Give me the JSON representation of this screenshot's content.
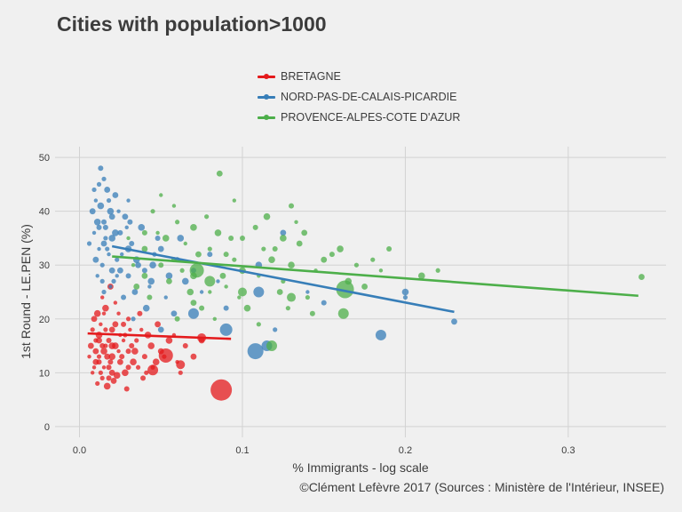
{
  "title": "Cities with population>1000",
  "caption": "©Clément Lefèvre 2017 (Sources : Ministère de l'Intérieur, INSEE)",
  "legend": [
    {
      "label": "BRETAGNE",
      "color": "#e41a1c"
    },
    {
      "label": "NORD-PAS-DE-CALAIS-PICARDIE",
      "color": "#377eb8"
    },
    {
      "label": "PROVENCE-ALPES-COTE D'AZUR",
      "color": "#4daf4a"
    }
  ],
  "chart_data": {
    "type": "scatter",
    "title": "Cities with population>1000",
    "xlabel": "% Immigrants - log scale",
    "ylabel": "1st Round - LE.PEN (%)",
    "xlim": [
      -0.015,
      0.36
    ],
    "ylim": [
      -2,
      52
    ],
    "x_ticks": [
      0.0,
      0.1,
      0.2,
      0.3
    ],
    "x_tick_labels": [
      "0.0",
      "0.1",
      "0.2",
      "0.3"
    ],
    "y_ticks": [
      0,
      10,
      20,
      30,
      40,
      50
    ],
    "y_tick_labels": [
      "0",
      "10",
      "20",
      "30",
      "40",
      "50"
    ],
    "grid": true,
    "legend_position": "top",
    "series": [
      {
        "name": "BRETAGNE",
        "color": "#e41a1c",
        "trend": [
          [
            0.005,
            17.3
          ],
          [
            0.093,
            16.3
          ]
        ],
        "points": [
          [
            0.008,
            10
          ],
          [
            0.012,
            12
          ],
          [
            0.015,
            14
          ],
          [
            0.01,
            16
          ],
          [
            0.02,
            18
          ],
          [
            0.006,
            13
          ],
          [
            0.018,
            11
          ],
          [
            0.022,
            15
          ],
          [
            0.014,
            9
          ],
          [
            0.009,
            20
          ],
          [
            0.025,
            17
          ],
          [
            0.03,
            14
          ],
          [
            0.016,
            22
          ],
          [
            0.011,
            8
          ],
          [
            0.007,
            15
          ],
          [
            0.013,
            19
          ],
          [
            0.019,
            12
          ],
          [
            0.028,
            10
          ],
          [
            0.035,
            16
          ],
          [
            0.017,
            13
          ],
          [
            0.024,
            21
          ],
          [
            0.04,
            13
          ],
          [
            0.012,
            17
          ],
          [
            0.008,
            18
          ],
          [
            0.021,
            8.5
          ],
          [
            0.015,
            11
          ],
          [
            0.027,
            19
          ],
          [
            0.033,
            12
          ],
          [
            0.045,
            11
          ],
          [
            0.01,
            14
          ],
          [
            0.014,
            24
          ],
          [
            0.018,
            16
          ],
          [
            0.023,
            9.5
          ],
          [
            0.03,
            20
          ],
          [
            0.05,
            14
          ],
          [
            0.038,
            18
          ],
          [
            0.026,
            13
          ],
          [
            0.011,
            21
          ],
          [
            0.016,
            15
          ],
          [
            0.02,
            10
          ],
          [
            0.06,
            12
          ],
          [
            0.032,
            15
          ],
          [
            0.042,
            17
          ],
          [
            0.013,
            10
          ],
          [
            0.019,
            26
          ],
          [
            0.009,
            11
          ],
          [
            0.029,
            7
          ],
          [
            0.055,
            16
          ],
          [
            0.036,
            11
          ],
          [
            0.048,
            19
          ],
          [
            0.022,
            23
          ],
          [
            0.065,
            15
          ],
          [
            0.017,
            7.5
          ],
          [
            0.012,
            13
          ],
          [
            0.025,
            12
          ],
          [
            0.031,
            18
          ],
          [
            0.014,
            15
          ],
          [
            0.02,
            13
          ],
          [
            0.016,
            18
          ],
          [
            0.01,
            12
          ],
          [
            0.027,
            16
          ],
          [
            0.018,
            9
          ],
          [
            0.034,
            14
          ],
          [
            0.041,
            10
          ],
          [
            0.022,
            19
          ],
          [
            0.015,
            21
          ],
          [
            0.03,
            11
          ],
          [
            0.044,
            15
          ],
          [
            0.052,
            13
          ],
          [
            0.012,
            16
          ],
          [
            0.024,
            14
          ],
          [
            0.037,
            21
          ],
          [
            0.02,
            15
          ],
          [
            0.028,
            17
          ],
          [
            0.07,
            13
          ],
          [
            0.058,
            17
          ],
          [
            0.039,
            9
          ],
          [
            0.047,
            12
          ],
          [
            0.062,
            10
          ],
          [
            0.075,
            16
          ]
        ],
        "big_points": [
          [
            0.053,
            13.2,
            8
          ],
          [
            0.087,
            6.8,
            12
          ],
          [
            0.062,
            11.5,
            5
          ],
          [
            0.075,
            16.5,
            5
          ],
          [
            0.045,
            10.5,
            6
          ]
        ]
      },
      {
        "name": "NORD-PAS-DE-CALAIS-PICARDIE",
        "color": "#377eb8",
        "trend": [
          [
            0.02,
            33.5
          ],
          [
            0.23,
            21.3
          ]
        ],
        "points": [
          [
            0.01,
            42
          ],
          [
            0.015,
            38
          ],
          [
            0.02,
            35
          ],
          [
            0.012,
            45
          ],
          [
            0.008,
            40
          ],
          [
            0.018,
            32
          ],
          [
            0.025,
            36
          ],
          [
            0.03,
            33
          ],
          [
            0.014,
            30
          ],
          [
            0.022,
            43
          ],
          [
            0.011,
            28
          ],
          [
            0.016,
            37
          ],
          [
            0.035,
            31
          ],
          [
            0.006,
            34
          ],
          [
            0.028,
            39
          ],
          [
            0.019,
            26
          ],
          [
            0.04,
            29
          ],
          [
            0.013,
            41
          ],
          [
            0.023,
            31
          ],
          [
            0.017,
            44
          ],
          [
            0.009,
            36
          ],
          [
            0.032,
            34
          ],
          [
            0.045,
            30
          ],
          [
            0.021,
            27
          ],
          [
            0.05,
            33
          ],
          [
            0.012,
            33
          ],
          [
            0.027,
            24
          ],
          [
            0.038,
            37
          ],
          [
            0.015,
            46
          ],
          [
            0.01,
            31
          ],
          [
            0.024,
            40
          ],
          [
            0.03,
            28
          ],
          [
            0.055,
            28
          ],
          [
            0.016,
            35
          ],
          [
            0.02,
            39
          ],
          [
            0.043,
            26
          ],
          [
            0.06,
            31
          ],
          [
            0.011,
            38
          ],
          [
            0.018,
            42
          ],
          [
            0.034,
            25
          ],
          [
            0.026,
            32
          ],
          [
            0.048,
            35
          ],
          [
            0.065,
            27
          ],
          [
            0.014,
            27
          ],
          [
            0.02,
            29
          ],
          [
            0.03,
            42
          ],
          [
            0.012,
            37
          ],
          [
            0.022,
            36
          ],
          [
            0.017,
            33
          ],
          [
            0.036,
            30
          ],
          [
            0.053,
            24
          ],
          [
            0.07,
            29
          ],
          [
            0.041,
            22
          ],
          [
            0.009,
            44
          ],
          [
            0.025,
            29
          ],
          [
            0.029,
            37
          ],
          [
            0.013,
            48
          ],
          [
            0.019,
            40
          ],
          [
            0.046,
            32
          ],
          [
            0.058,
            21
          ],
          [
            0.075,
            25
          ],
          [
            0.08,
            32
          ],
          [
            0.062,
            35
          ],
          [
            0.033,
            20
          ],
          [
            0.015,
            34
          ],
          [
            0.023,
            28
          ],
          [
            0.031,
            38
          ],
          [
            0.044,
            27
          ],
          [
            0.015,
            25
          ],
          [
            0.05,
            18
          ],
          [
            0.085,
            27
          ],
          [
            0.09,
            22
          ],
          [
            0.11,
            30
          ],
          [
            0.12,
            18
          ],
          [
            0.125,
            36
          ],
          [
            0.14,
            25
          ],
          [
            0.15,
            23
          ],
          [
            0.2,
            25
          ],
          [
            0.2,
            24
          ],
          [
            0.23,
            19.5
          ]
        ],
        "big_points": [
          [
            0.108,
            14,
            9
          ],
          [
            0.115,
            15,
            6
          ],
          [
            0.185,
            17,
            6
          ],
          [
            0.09,
            18,
            7
          ],
          [
            0.07,
            21,
            6
          ],
          [
            0.11,
            25,
            6
          ]
        ]
      },
      {
        "name": "PROVENCE-ALPES-COTE D'AZUR",
        "color": "#4daf4a",
        "trend": [
          [
            0.02,
            31.6
          ],
          [
            0.343,
            24.3
          ]
        ],
        "points": [
          [
            0.03,
            35
          ],
          [
            0.05,
            30
          ],
          [
            0.07,
            28
          ],
          [
            0.06,
            38
          ],
          [
            0.04,
            33
          ],
          [
            0.08,
            25
          ],
          [
            0.09,
            32
          ],
          [
            0.1,
            29
          ],
          [
            0.045,
            40
          ],
          [
            0.055,
            27
          ],
          [
            0.065,
            34
          ],
          [
            0.075,
            22
          ],
          [
            0.085,
            36
          ],
          [
            0.095,
            31
          ],
          [
            0.035,
            26
          ],
          [
            0.11,
            28
          ],
          [
            0.12,
            33
          ],
          [
            0.13,
            30
          ],
          [
            0.14,
            24
          ],
          [
            0.15,
            31
          ],
          [
            0.05,
            43
          ],
          [
            0.06,
            20
          ],
          [
            0.07,
            37
          ],
          [
            0.08,
            33
          ],
          [
            0.04,
            28
          ],
          [
            0.09,
            26
          ],
          [
            0.1,
            35
          ],
          [
            0.115,
            39
          ],
          [
            0.125,
            27
          ],
          [
            0.135,
            34
          ],
          [
            0.145,
            29
          ],
          [
            0.155,
            32
          ],
          [
            0.165,
            27
          ],
          [
            0.17,
            30
          ],
          [
            0.175,
            26
          ],
          [
            0.185,
            29
          ],
          [
            0.19,
            33
          ],
          [
            0.21,
            28
          ],
          [
            0.22,
            29
          ],
          [
            0.345,
            27.8
          ],
          [
            0.048,
            36
          ],
          [
            0.058,
            31
          ],
          [
            0.068,
            25
          ],
          [
            0.078,
            39
          ],
          [
            0.088,
            28
          ],
          [
            0.098,
            24
          ],
          [
            0.108,
            37
          ],
          [
            0.118,
            31
          ],
          [
            0.128,
            22
          ],
          [
            0.138,
            36
          ],
          [
            0.033,
            30
          ],
          [
            0.043,
            24
          ],
          [
            0.053,
            35
          ],
          [
            0.063,
            29
          ],
          [
            0.073,
            32
          ],
          [
            0.083,
            20
          ],
          [
            0.093,
            35
          ],
          [
            0.103,
            22
          ],
          [
            0.113,
            33
          ],
          [
            0.123,
            25
          ],
          [
            0.133,
            38
          ],
          [
            0.143,
            21
          ],
          [
            0.16,
            33
          ],
          [
            0.18,
            31
          ],
          [
            0.086,
            47
          ],
          [
            0.095,
            42
          ],
          [
            0.13,
            41
          ],
          [
            0.125,
            35
          ],
          [
            0.11,
            19
          ],
          [
            0.07,
            23
          ],
          [
            0.058,
            41
          ],
          [
            0.04,
            36
          ]
        ],
        "big_points": [
          [
            0.163,
            25.5,
            10
          ],
          [
            0.162,
            21,
            6
          ],
          [
            0.118,
            15,
            6
          ],
          [
            0.08,
            27,
            6
          ],
          [
            0.072,
            29,
            8
          ],
          [
            0.1,
            25,
            5
          ],
          [
            0.13,
            24,
            5
          ]
        ]
      }
    ]
  }
}
